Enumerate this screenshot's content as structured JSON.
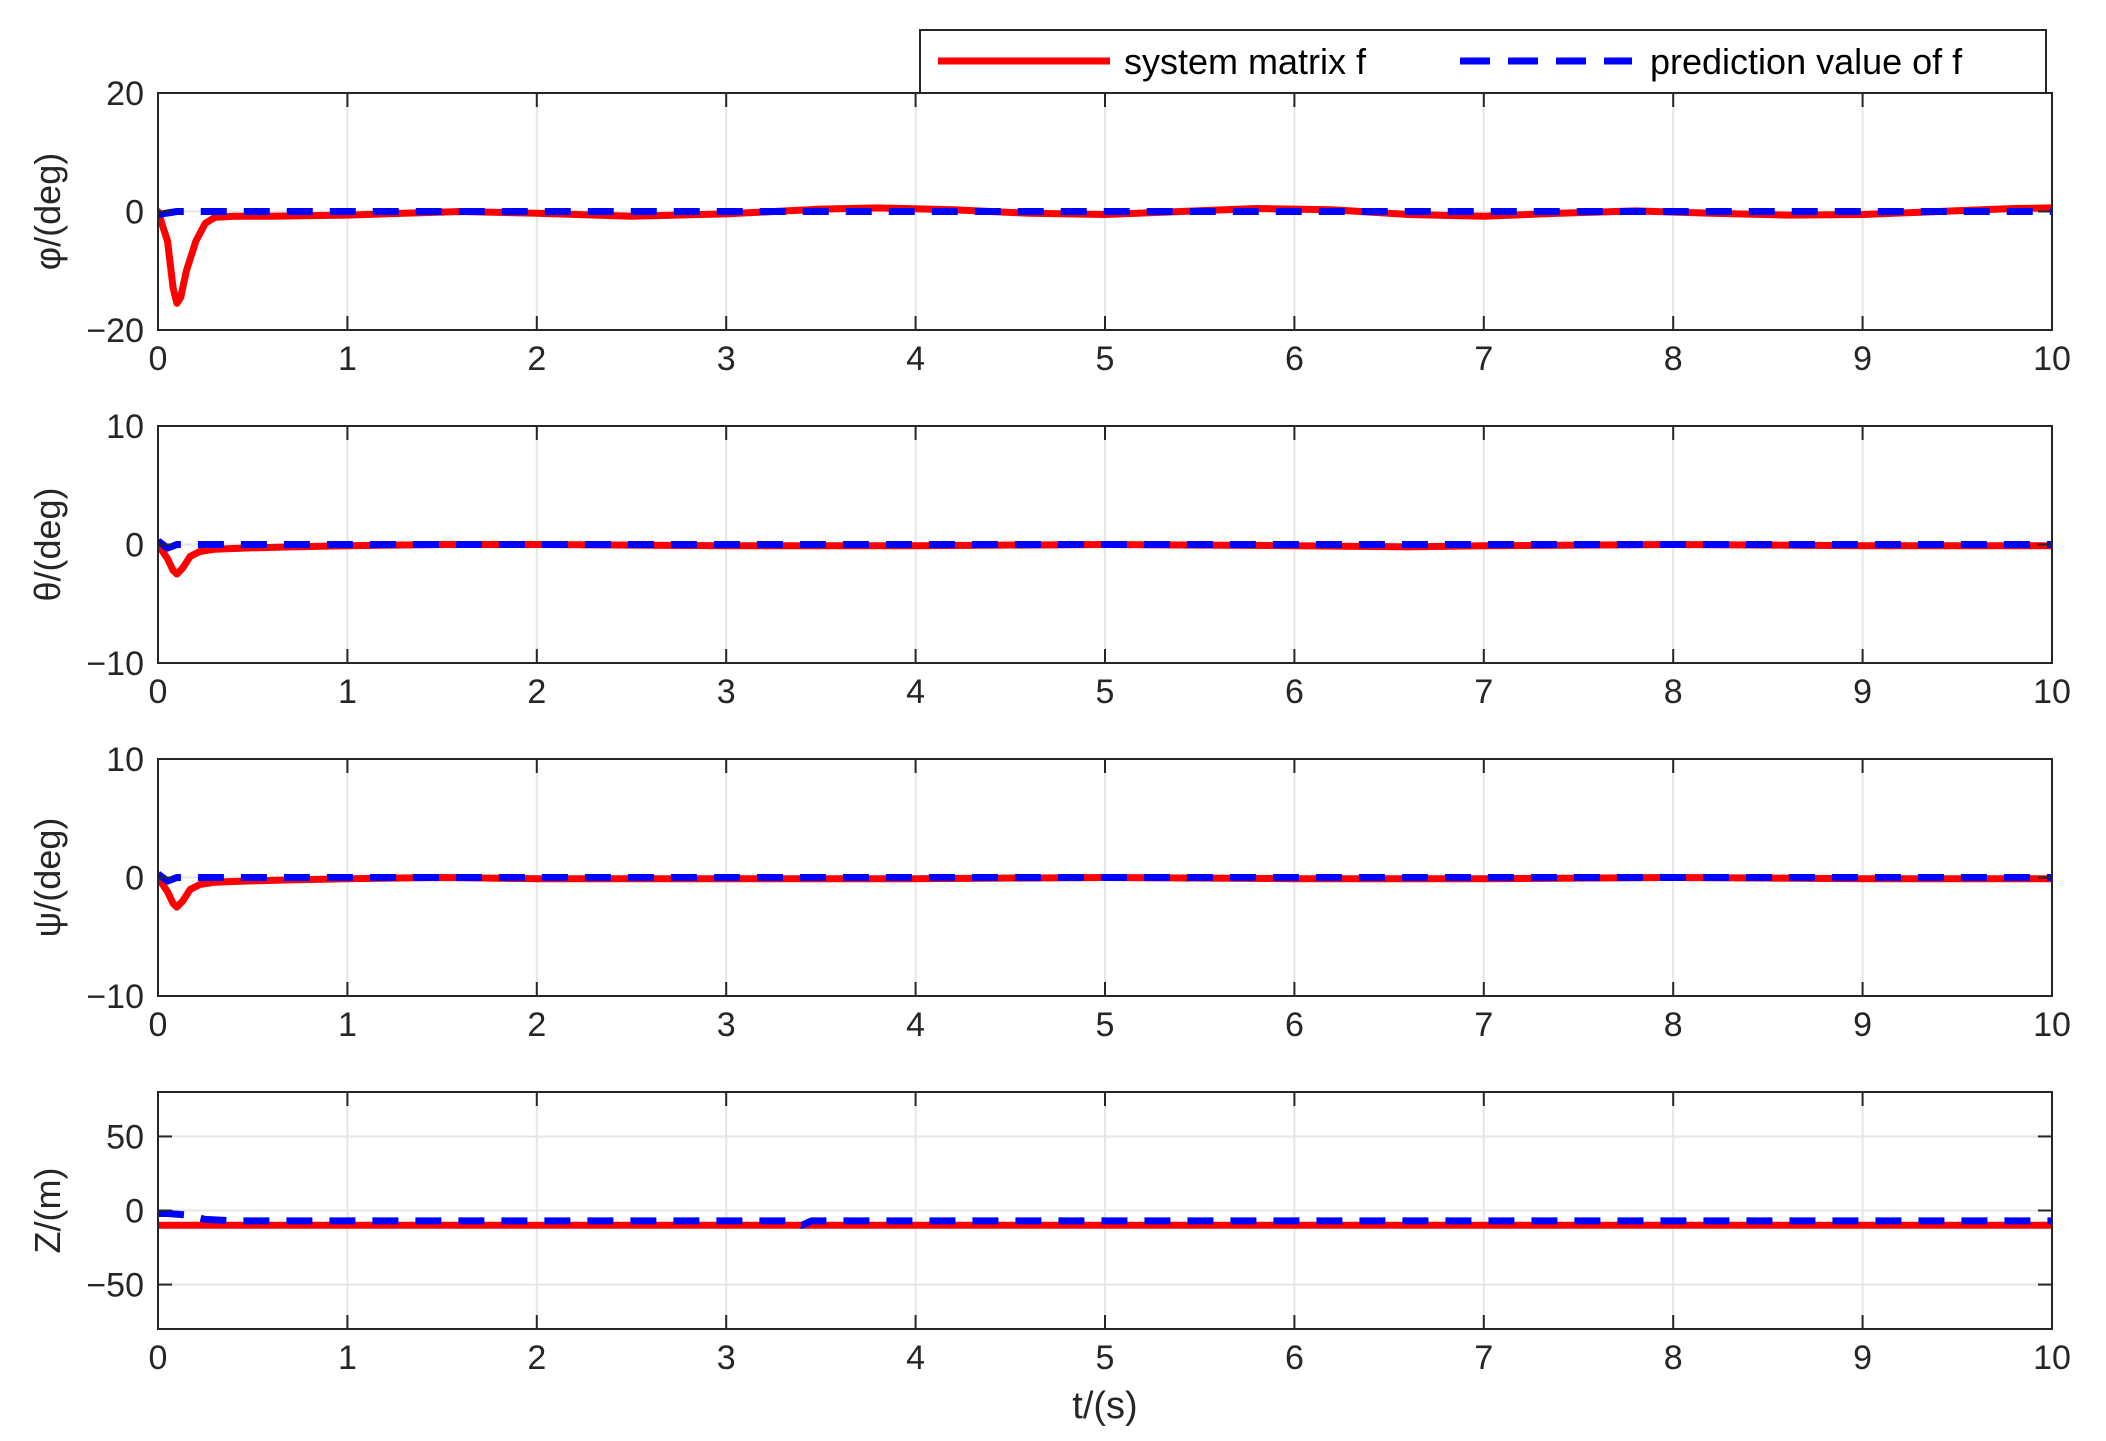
{
  "colors": {
    "system": "#ff0000",
    "prediction": "#0000ff",
    "axis": "#262626",
    "grid": "#e6e6e6"
  },
  "legend": {
    "placement": "top-right",
    "entries": [
      {
        "label": "system matrix f",
        "style": "solid",
        "color": "#ff0000"
      },
      {
        "label": "prediction value of f",
        "style": "dashed",
        "color": "#0000ff"
      }
    ]
  },
  "xlabel": "t/(s)",
  "chart_data": [
    {
      "type": "line",
      "ylabel": "φ/(deg)",
      "xlim": [
        0,
        10
      ],
      "ylim": [
        -20,
        20
      ],
      "xticks": [
        "0",
        "1",
        "2",
        "3",
        "4",
        "5",
        "6",
        "7",
        "8",
        "9",
        "10"
      ],
      "yticks": [
        {
          "value": 20,
          "label": "20"
        },
        {
          "value": 0,
          "label": "0"
        },
        {
          "value": -20,
          "label": "−20"
        }
      ],
      "grid": true,
      "series": [
        {
          "name": "system matrix f",
          "x": [
            0,
            0.05,
            0.08,
            0.1,
            0.12,
            0.15,
            0.2,
            0.25,
            0.3,
            0.4,
            0.6,
            0.8,
            1.0,
            1.3,
            1.6,
            2.0,
            2.5,
            3.0,
            3.5,
            3.8,
            4.2,
            4.6,
            5.0,
            5.4,
            5.8,
            6.2,
            6.6,
            7.0,
            7.4,
            7.8,
            8.2,
            8.6,
            9.0,
            9.4,
            9.8,
            10.0
          ],
          "y": [
            0,
            -5,
            -13,
            -15.5,
            -14.5,
            -10,
            -5,
            -2,
            -1,
            -0.8,
            -0.8,
            -0.7,
            -0.6,
            -0.3,
            0,
            -0.3,
            -0.8,
            -0.4,
            0.4,
            0.6,
            0.3,
            -0.3,
            -0.5,
            0,
            0.5,
            0.3,
            -0.5,
            -0.8,
            -0.3,
            0.1,
            -0.3,
            -0.6,
            -0.5,
            0,
            0.5,
            0.6
          ]
        },
        {
          "name": "prediction value of f",
          "x": [
            0,
            0.1,
            0.2,
            0.5,
            1,
            2,
            3,
            4,
            5,
            6,
            7,
            8,
            9,
            10
          ],
          "y": [
            -0.5,
            0,
            0,
            0,
            0,
            0,
            0,
            0,
            0,
            0,
            0,
            0,
            0,
            0
          ]
        }
      ]
    },
    {
      "type": "line",
      "ylabel": "θ/(deg)",
      "xlim": [
        0,
        10
      ],
      "ylim": [
        -10,
        10
      ],
      "xticks": [
        "0",
        "1",
        "2",
        "3",
        "4",
        "5",
        "6",
        "7",
        "8",
        "9",
        "10"
      ],
      "yticks": [
        {
          "value": 10,
          "label": "10"
        },
        {
          "value": 0,
          "label": "0"
        },
        {
          "value": -10,
          "label": "−10"
        }
      ],
      "grid": true,
      "series": [
        {
          "name": "system matrix f",
          "x": [
            0,
            0.05,
            0.08,
            0.1,
            0.13,
            0.17,
            0.22,
            0.3,
            0.45,
            0.7,
            1.0,
            1.5,
            2.0,
            3.0,
            4.0,
            5.0,
            6.0,
            6.6,
            7.0,
            8.0,
            9.0,
            10.0
          ],
          "y": [
            0,
            -1.2,
            -2.2,
            -2.5,
            -2,
            -1,
            -0.6,
            -0.4,
            -0.3,
            -0.2,
            -0.1,
            0,
            0,
            -0.1,
            -0.1,
            0,
            -0.1,
            -0.2,
            -0.1,
            0,
            -0.1,
            -0.1
          ]
        },
        {
          "name": "prediction value of f",
          "x": [
            0,
            0.05,
            0.1,
            0.2,
            0.5,
            1,
            2,
            3,
            4,
            5,
            6,
            7,
            8,
            9,
            10
          ],
          "y": [
            0.3,
            -0.3,
            0,
            0,
            0,
            0,
            0,
            0,
            0,
            0,
            0,
            0,
            0,
            0,
            0
          ]
        }
      ]
    },
    {
      "type": "line",
      "ylabel": "ψ/(deg)",
      "xlim": [
        0,
        10
      ],
      "ylim": [
        -10,
        10
      ],
      "xticks": [
        "0",
        "1",
        "2",
        "3",
        "4",
        "5",
        "6",
        "7",
        "8",
        "9",
        "10"
      ],
      "yticks": [
        {
          "value": 10,
          "label": "10"
        },
        {
          "value": 0,
          "label": "0"
        },
        {
          "value": -10,
          "label": "−10"
        }
      ],
      "grid": true,
      "series": [
        {
          "name": "system matrix f",
          "x": [
            0,
            0.05,
            0.08,
            0.1,
            0.13,
            0.17,
            0.22,
            0.3,
            0.45,
            0.7,
            1.0,
            1.5,
            2.0,
            3.0,
            4.0,
            5.0,
            6.0,
            7.0,
            8.0,
            9.0,
            10.0
          ],
          "y": [
            0,
            -1.2,
            -2.2,
            -2.5,
            -2,
            -1,
            -0.6,
            -0.4,
            -0.3,
            -0.2,
            -0.1,
            0,
            -0.1,
            -0.1,
            -0.1,
            0,
            -0.1,
            -0.1,
            0,
            -0.1,
            -0.1
          ]
        },
        {
          "name": "prediction value of f",
          "x": [
            0,
            0.05,
            0.1,
            0.2,
            0.5,
            1,
            2,
            3,
            4,
            5,
            6,
            7,
            8,
            9,
            10
          ],
          "y": [
            0.3,
            -0.3,
            0,
            0,
            0,
            0,
            0,
            0,
            0,
            0,
            0,
            0,
            0,
            0,
            0
          ]
        }
      ]
    },
    {
      "type": "line",
      "ylabel": "Z/(m)",
      "xlim": [
        0,
        10
      ],
      "ylim": [
        -80,
        80
      ],
      "xticks": [
        "0",
        "1",
        "2",
        "3",
        "4",
        "5",
        "6",
        "7",
        "8",
        "9",
        "10"
      ],
      "yticks": [
        {
          "value": 50,
          "label": "50"
        },
        {
          "value": 0,
          "label": "0"
        },
        {
          "value": -50,
          "label": "−50"
        }
      ],
      "grid": true,
      "series": [
        {
          "name": "system matrix f",
          "x": [
            0,
            10
          ],
          "y": [
            -10,
            -10
          ]
        },
        {
          "name": "prediction value of f",
          "x": [
            0,
            0.05,
            0.15,
            0.25,
            0.4,
            1,
            2,
            3,
            3.35,
            3.4,
            3.45,
            4,
            5,
            6,
            7,
            8,
            9,
            10
          ],
          "y": [
            -2,
            -2,
            -3,
            -6,
            -7,
            -7,
            -7,
            -7,
            -7,
            -10,
            -7,
            -7,
            -7,
            -7,
            -7,
            -7,
            -7,
            -7
          ]
        }
      ]
    }
  ]
}
